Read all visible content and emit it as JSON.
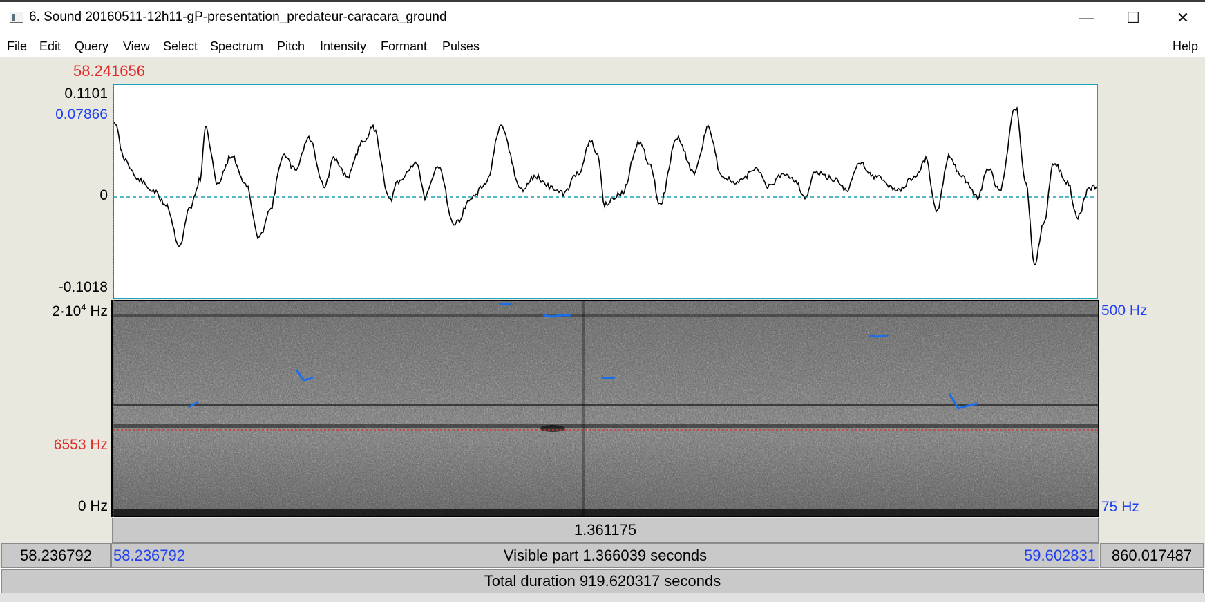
{
  "window": {
    "title": "6. Sound 20160511-12h11-gP-presentation_predateur-caracara_ground",
    "minimize_glyph": "—",
    "maximize_glyph": "☐",
    "close_glyph": "✕"
  },
  "menu": {
    "items": [
      "File",
      "Edit",
      "Query",
      "View",
      "Select",
      "Spectrum",
      "Pitch",
      "Intensity",
      "Formant",
      "Pulses"
    ],
    "help": "Help"
  },
  "cursor_time": "58.241656",
  "waveform": {
    "y_max": "0.1101",
    "y_cursor": "0.07866",
    "y_zero": "0",
    "y_min": "-0.1018"
  },
  "spectrogram": {
    "freq_top": "2·10",
    "freq_top_exp": "4",
    "freq_top_unit": " Hz",
    "freq_cursor": "6553 Hz",
    "freq_bottom": "0 Hz",
    "pitch_top": "500 Hz",
    "pitch_bottom": "75 Hz"
  },
  "bars": {
    "selection_duration": "1.361175",
    "left_total_start": "58.236792",
    "visible_start": "58.236792",
    "visible_label": "Visible part 1.366039 seconds",
    "visible_end": "59.602831",
    "right_total_end": "860.017487",
    "total_duration": "Total duration 919.620317 seconds"
  },
  "colors": {
    "cursor_red": "#e12b2b",
    "blue_text": "#1f3ff0",
    "pitch_blue": "#1a6ee8",
    "zero_line": "#1aa3b8"
  },
  "icons": {
    "app": "praat-sound-window-icon"
  }
}
